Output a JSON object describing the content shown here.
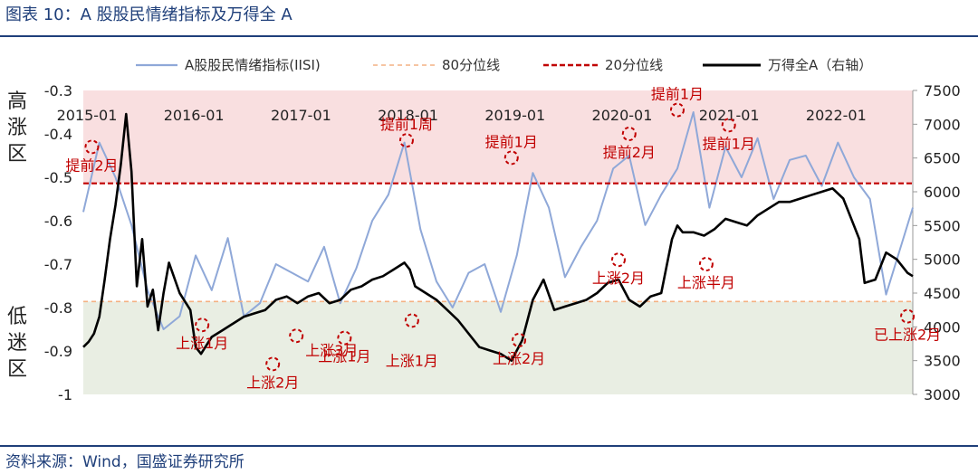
{
  "header": {
    "title": "图表 10：A 股股民情绪指标及万得全 A"
  },
  "footer": {
    "source": "资料来源：Wind，国盛证券研究所"
  },
  "zones": {
    "high": "高涨区",
    "low": "低迷区"
  },
  "colors": {
    "isi": "#8fa8d8",
    "p80": "#f4b183",
    "p20": "#c00000",
    "wind": "#000000",
    "high_band": "#f9dfe0",
    "low_band": "#e9eee3",
    "annot": "#c00000"
  },
  "chart_data": {
    "type": "line",
    "title": "",
    "legend_position": "top",
    "xlabel": "",
    "ylabel": "",
    "y2label": "",
    "ylim": [
      -1,
      -0.3
    ],
    "y2lim": [
      3000,
      7500
    ],
    "yticks": [
      "-0.3",
      "-0.4",
      "-0.5",
      "-0.6",
      "-0.7",
      "-0.8",
      "-0.9",
      "-1"
    ],
    "y2ticks": [
      "7500",
      "7000",
      "6500",
      "6000",
      "5500",
      "5000",
      "4500",
      "4000",
      "3500",
      "3000"
    ],
    "xlim": [
      2015.0,
      2022.75
    ],
    "xticks": [
      {
        "label": "2015-01",
        "x": 2015.0
      },
      {
        "label": "2016-01",
        "x": 2016.0
      },
      {
        "label": "2017-01",
        "x": 2017.0
      },
      {
        "label": "2018-01",
        "x": 2018.0
      },
      {
        "label": "2019-01",
        "x": 2019.0
      },
      {
        "label": "2020-01",
        "x": 2020.0
      },
      {
        "label": "2021-01",
        "x": 2021.0
      },
      {
        "label": "2022-01",
        "x": 2022.0
      }
    ],
    "series": [
      {
        "name": "A股股民情绪指标(IISI)",
        "axis": "left",
        "x": [
          2015.0,
          2015.15,
          2015.3,
          2015.45,
          2015.6,
          2015.75,
          2015.9,
          2016.05,
          2016.2,
          2016.35,
          2016.5,
          2016.65,
          2016.8,
          2016.95,
          2017.1,
          2017.25,
          2017.4,
          2017.55,
          2017.7,
          2017.85,
          2018.0,
          2018.15,
          2018.3,
          2018.45,
          2018.6,
          2018.75,
          2018.9,
          2019.05,
          2019.2,
          2019.35,
          2019.5,
          2019.65,
          2019.8,
          2019.95,
          2020.1,
          2020.25,
          2020.4,
          2020.55,
          2020.7,
          2020.85,
          2021.0,
          2021.15,
          2021.3,
          2021.45,
          2021.6,
          2021.75,
          2021.9,
          2022.05,
          2022.2,
          2022.35,
          2022.5,
          2022.65,
          2022.75
        ],
        "values": [
          -0.58,
          -0.42,
          -0.5,
          -0.61,
          -0.76,
          -0.85,
          -0.82,
          -0.68,
          -0.76,
          -0.64,
          -0.82,
          -0.79,
          -0.7,
          -0.72,
          -0.74,
          -0.66,
          -0.79,
          -0.71,
          -0.6,
          -0.54,
          -0.42,
          -0.62,
          -0.74,
          -0.8,
          -0.72,
          -0.7,
          -0.81,
          -0.68,
          -0.49,
          -0.57,
          -0.73,
          -0.66,
          -0.6,
          -0.48,
          -0.45,
          -0.61,
          -0.54,
          -0.48,
          -0.35,
          -0.57,
          -0.43,
          -0.5,
          -0.41,
          -0.55,
          -0.46,
          -0.45,
          -0.52,
          -0.42,
          -0.5,
          -0.55,
          -0.77,
          -0.65,
          -0.57
        ]
      },
      {
        "name": "80分位线",
        "axis": "left",
        "x": [
          2015.0,
          2022.75
        ],
        "values": [
          -0.786,
          -0.786
        ]
      },
      {
        "name": "20分位线",
        "axis": "left",
        "x": [
          2015.0,
          2022.75
        ],
        "values": [
          -0.514,
          -0.514
        ]
      },
      {
        "name": "万得全A（右轴）",
        "axis": "right",
        "x": [
          2015.0,
          2015.05,
          2015.1,
          2015.15,
          2015.2,
          2015.25,
          2015.3,
          2015.35,
          2015.4,
          2015.45,
          2015.5,
          2015.55,
          2015.6,
          2015.65,
          2015.7,
          2015.75,
          2015.8,
          2015.9,
          2016.0,
          2016.05,
          2016.1,
          2016.2,
          2016.3,
          2016.4,
          2016.5,
          2016.6,
          2016.7,
          2016.8,
          2016.9,
          2017.0,
          2017.1,
          2017.2,
          2017.3,
          2017.4,
          2017.5,
          2017.6,
          2017.7,
          2017.8,
          2017.9,
          2018.0,
          2018.05,
          2018.1,
          2018.2,
          2018.3,
          2018.4,
          2018.5,
          2018.6,
          2018.7,
          2018.8,
          2018.9,
          2019.0,
          2019.1,
          2019.2,
          2019.3,
          2019.4,
          2019.5,
          2019.6,
          2019.7,
          2019.8,
          2019.9,
          2020.0,
          2020.1,
          2020.2,
          2020.3,
          2020.4,
          2020.5,
          2020.55,
          2020.6,
          2020.7,
          2020.8,
          2020.9,
          2021.0,
          2021.1,
          2021.2,
          2021.3,
          2021.4,
          2021.5,
          2021.6,
          2021.7,
          2021.8,
          2021.9,
          2022.0,
          2022.1,
          2022.2,
          2022.25,
          2022.3,
          2022.4,
          2022.5,
          2022.6,
          2022.7,
          2022.75
        ],
        "values": [
          3700,
          3780,
          3900,
          4150,
          4700,
          5300,
          5800,
          6400,
          7150,
          6300,
          4600,
          5300,
          4300,
          4550,
          3950,
          4500,
          4950,
          4500,
          4250,
          3700,
          3600,
          3850,
          3950,
          4050,
          4150,
          4200,
          4250,
          4400,
          4450,
          4350,
          4450,
          4500,
          4350,
          4400,
          4550,
          4600,
          4700,
          4750,
          4850,
          4950,
          4850,
          4600,
          4500,
          4400,
          4250,
          4100,
          3900,
          3700,
          3650,
          3600,
          3500,
          3800,
          4400,
          4700,
          4250,
          4300,
          4350,
          4400,
          4500,
          4650,
          4700,
          4400,
          4300,
          4450,
          4500,
          5300,
          5500,
          5400,
          5400,
          5350,
          5450,
          5600,
          5550,
          5500,
          5650,
          5750,
          5850,
          5850,
          5900,
          5950,
          6000,
          6050,
          5900,
          5500,
          5300,
          4650,
          4700,
          5100,
          5000,
          4800,
          4750
        ]
      }
    ],
    "annotations": [
      {
        "label": "提前2月",
        "x": 2015.08,
        "y": -0.43,
        "side": "below"
      },
      {
        "label": "上涨1月",
        "x": 2016.11,
        "y": -0.84,
        "side": "below"
      },
      {
        "label": "上涨2月",
        "x": 2016.77,
        "y": -0.93,
        "side": "below"
      },
      {
        "label": "上涨3月",
        "x": 2016.99,
        "y": -0.865,
        "side": "right"
      },
      {
        "label": "上涨1月",
        "x": 2017.44,
        "y": -0.87,
        "side": "below"
      },
      {
        "label": "提前1周",
        "x": 2018.02,
        "y": -0.415,
        "side": "above"
      },
      {
        "label": "上涨1月",
        "x": 2018.07,
        "y": -0.83,
        "side": "below2"
      },
      {
        "label": "提前1月",
        "x": 2019.0,
        "y": -0.455,
        "side": "above"
      },
      {
        "label": "上涨2月",
        "x": 2019.07,
        "y": -0.875,
        "side": "below"
      },
      {
        "label": "上涨2月",
        "x": 2020.0,
        "y": -0.69,
        "side": "below"
      },
      {
        "label": "提前2月",
        "x": 2020.1,
        "y": -0.4,
        "side": "below"
      },
      {
        "label": "提前1月",
        "x": 2020.55,
        "y": -0.345,
        "side": "above"
      },
      {
        "label": "上涨半月",
        "x": 2020.82,
        "y": -0.7,
        "side": "below"
      },
      {
        "label": "提前1月",
        "x": 2021.03,
        "y": -0.38,
        "side": "below"
      },
      {
        "label": "已上涨2月",
        "x": 2022.7,
        "y": -0.82,
        "side": "below"
      }
    ]
  }
}
